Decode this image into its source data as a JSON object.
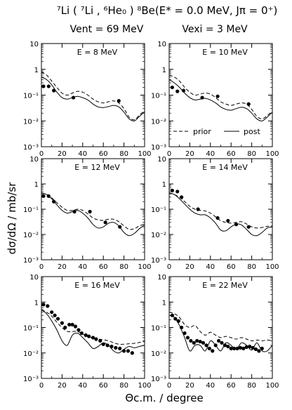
{
  "figure": {
    "title_line1": "⁷Li ( ⁷Li , ⁶He₀ ) ⁸Be(E* = 0.0 MeV, Jπ = 0⁺)",
    "title_line2_left": "Vent = 69 MeV",
    "title_line2_right": "Vexi = 3 MeV",
    "ylabel": "dσ/dΩ  /  mb/sr",
    "xlabel": "Θc.m. / degree",
    "legend": [
      {
        "label": "prior",
        "style": "dashed"
      },
      {
        "label": "post",
        "style": "solid"
      }
    ]
  },
  "chart_data": [
    {
      "type": "line",
      "panel": "E = 8 MeV",
      "xlim": [
        0,
        100
      ],
      "ylim": [
        0.001,
        10
      ],
      "yscale": "log",
      "xticks": [
        "0",
        "20",
        "40",
        "60",
        "80",
        "100"
      ],
      "yticks": [
        "10⁻³",
        "10⁻²",
        "10⁻¹",
        "1",
        "10"
      ],
      "series": [
        {
          "name": "prior",
          "style": "dashed",
          "x": [
            0,
            5,
            10,
            15,
            20,
            25,
            30,
            35,
            40,
            45,
            50,
            55,
            60,
            65,
            70,
            75,
            80,
            85,
            90,
            95,
            100
          ],
          "y": [
            0.8,
            0.6,
            0.35,
            0.2,
            0.12,
            0.1,
            0.12,
            0.14,
            0.13,
            0.1,
            0.07,
            0.055,
            0.05,
            0.055,
            0.06,
            0.05,
            0.03,
            0.014,
            0.011,
            0.017,
            0.025
          ]
        },
        {
          "name": "post",
          "style": "solid",
          "x": [
            0,
            5,
            10,
            15,
            20,
            25,
            30,
            35,
            40,
            45,
            50,
            55,
            60,
            65,
            70,
            75,
            80,
            85,
            90,
            95,
            100
          ],
          "y": [
            0.5,
            0.4,
            0.25,
            0.13,
            0.08,
            0.07,
            0.08,
            0.09,
            0.08,
            0.065,
            0.045,
            0.035,
            0.033,
            0.036,
            0.04,
            0.035,
            0.022,
            0.012,
            0.01,
            0.015,
            0.023
          ]
        },
        {
          "name": "data",
          "style": "points",
          "x": [
            2,
            7,
            12,
            31,
            75
          ],
          "y": [
            0.22,
            0.22,
            0.15,
            0.08,
            0.06
          ]
        }
      ]
    },
    {
      "type": "line",
      "panel": "E = 10 MeV",
      "xlim": [
        0,
        100
      ],
      "ylim": [
        0.001,
        10
      ],
      "yscale": "log",
      "xticks": [
        "0",
        "20",
        "40",
        "60",
        "80",
        "100"
      ],
      "yticks": [
        "10⁻³",
        "10⁻²",
        "10⁻¹",
        "1",
        "10"
      ],
      "series": [
        {
          "name": "prior",
          "style": "dashed",
          "x": [
            0,
            5,
            10,
            15,
            20,
            25,
            30,
            35,
            40,
            45,
            50,
            55,
            60,
            65,
            70,
            75,
            80,
            85,
            90,
            95,
            100
          ],
          "y": [
            0.6,
            0.5,
            0.35,
            0.2,
            0.13,
            0.1,
            0.11,
            0.12,
            0.11,
            0.08,
            0.055,
            0.045,
            0.04,
            0.045,
            0.05,
            0.045,
            0.028,
            0.015,
            0.012,
            0.016,
            0.024
          ]
        },
        {
          "name": "post",
          "style": "solid",
          "x": [
            0,
            5,
            10,
            15,
            20,
            25,
            30,
            35,
            40,
            45,
            50,
            55,
            60,
            65,
            70,
            75,
            80,
            85,
            90,
            95,
            100
          ],
          "y": [
            0.4,
            0.3,
            0.2,
            0.12,
            0.08,
            0.065,
            0.07,
            0.075,
            0.065,
            0.05,
            0.035,
            0.028,
            0.026,
            0.03,
            0.034,
            0.03,
            0.02,
            0.012,
            0.01,
            0.014,
            0.022
          ]
        },
        {
          "name": "data",
          "style": "points",
          "x": [
            3,
            8,
            14,
            32,
            47,
            77
          ],
          "y": [
            0.2,
            0.14,
            0.15,
            0.08,
            0.09,
            0.045
          ]
        }
      ]
    },
    {
      "type": "line",
      "panel": "E = 12 MeV",
      "xlim": [
        0,
        100
      ],
      "ylim": [
        0.001,
        10
      ],
      "yscale": "log",
      "xticks": [
        "0",
        "20",
        "40",
        "60",
        "80",
        "100"
      ],
      "yticks": [
        "10⁻³",
        "10⁻²",
        "10⁻¹",
        "1",
        "10"
      ],
      "series": [
        {
          "name": "prior",
          "style": "dashed",
          "x": [
            0,
            5,
            10,
            15,
            20,
            25,
            30,
            35,
            40,
            45,
            50,
            55,
            60,
            65,
            70,
            75,
            80,
            85,
            90,
            95,
            100
          ],
          "y": [
            0.45,
            0.38,
            0.28,
            0.18,
            0.12,
            0.09,
            0.09,
            0.1,
            0.09,
            0.065,
            0.045,
            0.038,
            0.036,
            0.04,
            0.04,
            0.032,
            0.022,
            0.016,
            0.017,
            0.022,
            0.026
          ]
        },
        {
          "name": "post",
          "style": "solid",
          "x": [
            0,
            5,
            10,
            15,
            20,
            25,
            30,
            35,
            40,
            45,
            50,
            55,
            60,
            65,
            70,
            75,
            80,
            85,
            90,
            95,
            100
          ],
          "y": [
            0.45,
            0.38,
            0.26,
            0.15,
            0.09,
            0.07,
            0.08,
            0.09,
            0.07,
            0.045,
            0.025,
            0.018,
            0.02,
            0.028,
            0.03,
            0.022,
            0.012,
            0.009,
            0.011,
            0.017,
            0.024
          ]
        },
        {
          "name": "data",
          "style": "points",
          "x": [
            2,
            7,
            12,
            32,
            47,
            62,
            76
          ],
          "y": [
            0.33,
            0.33,
            0.2,
            0.08,
            0.08,
            0.03,
            0.02
          ]
        }
      ]
    },
    {
      "type": "line",
      "panel": "E = 14 MeV",
      "xlim": [
        0,
        100
      ],
      "ylim": [
        0.001,
        10
      ],
      "yscale": "log",
      "xticks": [
        "0",
        "20",
        "40",
        "60",
        "80",
        "100"
      ],
      "yticks": [
        "10⁻³",
        "10⁻²",
        "10⁻¹",
        "1",
        "10"
      ],
      "series": [
        {
          "name": "prior",
          "style": "dashed",
          "x": [
            0,
            5,
            10,
            15,
            20,
            25,
            30,
            35,
            40,
            45,
            50,
            55,
            60,
            65,
            70,
            75,
            80,
            85,
            90,
            95,
            100
          ],
          "y": [
            0.45,
            0.38,
            0.3,
            0.2,
            0.13,
            0.1,
            0.09,
            0.085,
            0.07,
            0.05,
            0.035,
            0.03,
            0.028,
            0.03,
            0.032,
            0.026,
            0.02,
            0.018,
            0.019,
            0.021,
            0.022
          ]
        },
        {
          "name": "post",
          "style": "solid",
          "x": [
            0,
            5,
            10,
            15,
            20,
            25,
            30,
            35,
            40,
            45,
            50,
            55,
            60,
            65,
            70,
            75,
            80,
            85,
            90,
            95,
            100
          ],
          "y": [
            0.45,
            0.38,
            0.26,
            0.16,
            0.1,
            0.07,
            0.06,
            0.06,
            0.045,
            0.028,
            0.015,
            0.014,
            0.02,
            0.026,
            0.024,
            0.016,
            0.01,
            0.009,
            0.012,
            0.018,
            0.02
          ]
        },
        {
          "name": "data",
          "style": "points",
          "x": [
            3,
            8,
            12,
            28,
            47,
            57,
            65,
            77
          ],
          "y": [
            0.55,
            0.5,
            0.3,
            0.1,
            0.045,
            0.035,
            0.025,
            0.02
          ]
        }
      ]
    },
    {
      "type": "line",
      "panel": "E = 16 MeV",
      "xlim": [
        0,
        100
      ],
      "ylim": [
        0.001,
        10
      ],
      "yscale": "log",
      "xticks": [
        "0",
        "20",
        "40",
        "60",
        "80",
        "100"
      ],
      "yticks": [
        "10⁻³",
        "10⁻²",
        "10⁻¹",
        "1",
        "10"
      ],
      "series": [
        {
          "name": "prior",
          "style": "dashed",
          "x": [
            0,
            5,
            10,
            15,
            20,
            25,
            30,
            35,
            40,
            45,
            50,
            55,
            60,
            65,
            70,
            75,
            80,
            85,
            90,
            95,
            100
          ],
          "y": [
            0.5,
            0.4,
            0.28,
            0.16,
            0.1,
            0.07,
            0.07,
            0.07,
            0.055,
            0.045,
            0.038,
            0.035,
            0.033,
            0.03,
            0.025,
            0.022,
            0.022,
            0.023,
            0.024,
            0.026,
            0.028
          ]
        },
        {
          "name": "post",
          "style": "solid",
          "x": [
            0,
            5,
            10,
            15,
            20,
            25,
            30,
            35,
            40,
            45,
            50,
            55,
            60,
            65,
            70,
            75,
            80,
            85,
            90,
            95,
            100
          ],
          "y": [
            0.5,
            0.35,
            0.18,
            0.08,
            0.03,
            0.02,
            0.05,
            0.06,
            0.04,
            0.025,
            0.015,
            0.018,
            0.025,
            0.02,
            0.012,
            0.01,
            0.014,
            0.018,
            0.016,
            0.018,
            0.02
          ]
        },
        {
          "name": "data",
          "style": "points",
          "x": [
            2,
            6,
            10,
            13,
            16,
            20,
            23,
            27,
            30,
            33,
            36,
            39,
            43,
            46,
            50,
            53,
            57,
            60,
            64,
            68,
            72,
            76,
            80,
            84,
            88
          ],
          "y": [
            0.8,
            0.7,
            0.4,
            0.3,
            0.22,
            0.15,
            0.1,
            0.13,
            0.13,
            0.11,
            0.08,
            0.06,
            0.05,
            0.045,
            0.04,
            0.035,
            0.03,
            0.022,
            0.02,
            0.018,
            0.016,
            0.015,
            0.012,
            0.012,
            0.01
          ]
        }
      ]
    },
    {
      "type": "line",
      "panel": "E = 22 MeV",
      "xlim": [
        0,
        100
      ],
      "ylim": [
        0.001,
        10
      ],
      "yscale": "log",
      "xticks": [
        "0",
        "20",
        "40",
        "60",
        "80",
        "100"
      ],
      "yticks": [
        "10⁻³",
        "10⁻²",
        "10⁻¹",
        "1",
        "10"
      ],
      "series": [
        {
          "name": "prior",
          "style": "dashed",
          "x": [
            0,
            5,
            10,
            15,
            20,
            25,
            30,
            35,
            40,
            45,
            50,
            55,
            60,
            65,
            70,
            75,
            80,
            85,
            90,
            95,
            100
          ],
          "y": [
            0.4,
            0.35,
            0.25,
            0.13,
            0.1,
            0.12,
            0.07,
            0.05,
            0.065,
            0.05,
            0.04,
            0.045,
            0.04,
            0.035,
            0.04,
            0.035,
            0.03,
            0.032,
            0.03,
            0.032,
            0.03
          ]
        },
        {
          "name": "post",
          "style": "solid",
          "x": [
            0,
            5,
            10,
            15,
            20,
            25,
            30,
            35,
            40,
            45,
            50,
            55,
            60,
            65,
            70,
            75,
            80,
            85,
            90,
            95,
            100
          ],
          "y": [
            0.3,
            0.25,
            0.12,
            0.04,
            0.012,
            0.02,
            0.02,
            0.012,
            0.03,
            0.02,
            0.012,
            0.025,
            0.02,
            0.014,
            0.025,
            0.02,
            0.013,
            0.025,
            0.012,
            0.012,
            0.02
          ]
        },
        {
          "name": "data",
          "style": "points",
          "x": [
            3,
            6,
            9,
            12,
            15,
            18,
            21,
            24,
            27,
            30,
            33,
            36,
            39,
            42,
            45,
            48,
            51,
            54,
            57,
            60,
            63,
            66,
            69,
            72,
            75,
            78,
            81,
            84,
            87,
            90
          ],
          "y": [
            0.3,
            0.22,
            0.18,
            0.1,
            0.06,
            0.04,
            0.03,
            0.025,
            0.03,
            0.028,
            0.025,
            0.02,
            0.015,
            0.012,
            0.02,
            0.03,
            0.025,
            0.02,
            0.018,
            0.015,
            0.015,
            0.015,
            0.016,
            0.015,
            0.017,
            0.018,
            0.016,
            0.014,
            0.012,
            0.015
          ]
        }
      ]
    }
  ]
}
